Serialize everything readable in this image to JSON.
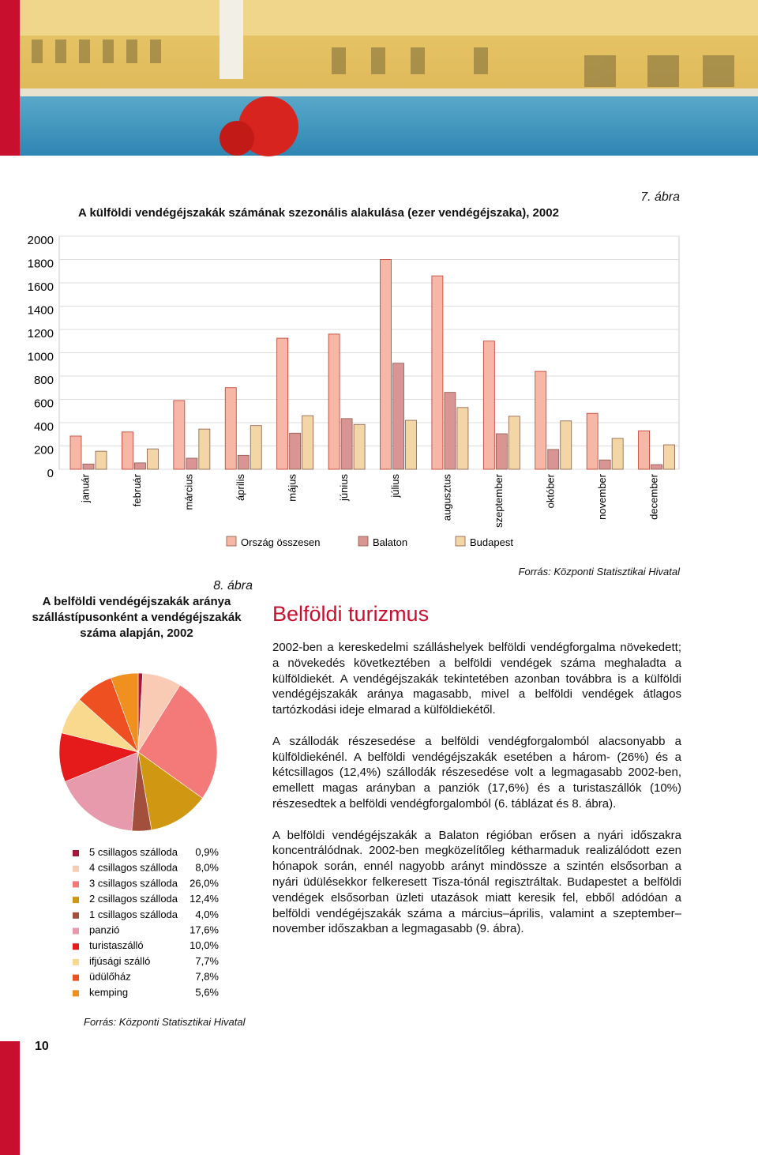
{
  "chart_data": [
    {
      "type": "bar",
      "figure_label": "7. ábra",
      "title": "A külföldi vendégéjszakák számának szezonális alakulása (ezer vendégéjszaka), 2002",
      "categories": [
        "január",
        "február",
        "március",
        "április",
        "május",
        "június",
        "július",
        "augusztus",
        "szeptember",
        "október",
        "november",
        "december"
      ],
      "series": [
        {
          "name": "Ország összesen",
          "color": "#f6b7a6",
          "values": [
            285,
            320,
            590,
            700,
            1125,
            1160,
            1800,
            1660,
            1100,
            840,
            480,
            330
          ]
        },
        {
          "name": "Balaton",
          "color": "#d99494",
          "values": [
            45,
            55,
            95,
            120,
            310,
            435,
            910,
            660,
            305,
            170,
            80,
            40
          ]
        },
        {
          "name": "Budapest",
          "color": "#f2d6a6",
          "values": [
            155,
            175,
            345,
            375,
            460,
            385,
            420,
            530,
            455,
            415,
            265,
            210
          ]
        }
      ],
      "ylim": [
        0,
        2000
      ],
      "yticks": [
        0,
        200,
        400,
        600,
        800,
        1000,
        1200,
        1400,
        1600,
        1800,
        2000
      ],
      "grid": true,
      "source": "Forrás: Központi Statisztikai Hivatal"
    },
    {
      "type": "pie",
      "figure_label": "8. ábra",
      "title": "A belföldi vendégéjszakák aránya szállástípusonként a vendégéjszakák száma alapján, 2002",
      "categories": [
        "5 csillagos szálloda",
        "4 csillagos szálloda",
        "3 csillagos szálloda",
        "2 csillagos szálloda",
        "1 csillagos szálloda",
        "panzió",
        "turistaszálló",
        "ifjúsági szálló",
        "üdülőház",
        "kemping"
      ],
      "values": [
        0.9,
        8.0,
        26.0,
        12.4,
        4.0,
        17.6,
        10.0,
        7.7,
        7.8,
        5.6
      ],
      "value_labels": [
        "0,9%",
        "8,0%",
        "26,0%",
        "12,4%",
        "4,0%",
        "17,6%",
        "10,0%",
        "7,7%",
        "7,8%",
        "5,6%"
      ],
      "colors": [
        "#a3173c",
        "#f9cbb4",
        "#f47a7a",
        "#cf9712",
        "#a24f3e",
        "#e79aab",
        "#e51b1b",
        "#f8d98e",
        "#ef5022",
        "#f0901e"
      ],
      "source": "Forrás: Központi Statisztikai Hivatal"
    }
  ],
  "article": {
    "heading": "Belföldi turizmus",
    "paragraphs": [
      "2002-ben a kereskedelmi szálláshelyek belföldi vendégforgalma növekedett; a növekedés következtében a belföldi vendégek száma meghaladta a külföldiekét. A vendégéjszakák tekintetében azonban továbbra is a külföldi vendégéjszakák aránya magasabb, mivel a belföldi vendégek átlagos tartózkodási ideje elmarad a külföldiekétől.",
      "A szállodák részesedése a belföldi vendégforgalomból alacsonyabb a külföldiekénél. A belföldi vendégéjszakák esetében a három- (26%) és a kétcsillagos (12,4%) szállodák részesedése volt a legmagasabb 2002-ben, emellett magas arányban a panziók (17,6%) és a turistaszállók (10%) részesedtek a belföldi vendégforgalomból (6. táblázat és 8. ábra).",
      "A belföldi vendégéjszakák a Balaton régióban erősen a nyári időszakra koncentrálódnak. 2002-ben megközelítőleg kétharmaduk realizálódott ezen hónapok során, ennél nagyobb arányt mindössze a szintén elsősorban a nyári üdülésekkor felkeresett Tisza-tónál regisztráltak. Budapestet a belföldi vendégek elsősorban üzleti utazások miatt keresik fel, ebből adódóan a belföldi vendégéjszakák száma a március–április, valamint a szeptember–november időszakban a legmagasabb (9. ábra)."
    ]
  },
  "page_number": "10"
}
